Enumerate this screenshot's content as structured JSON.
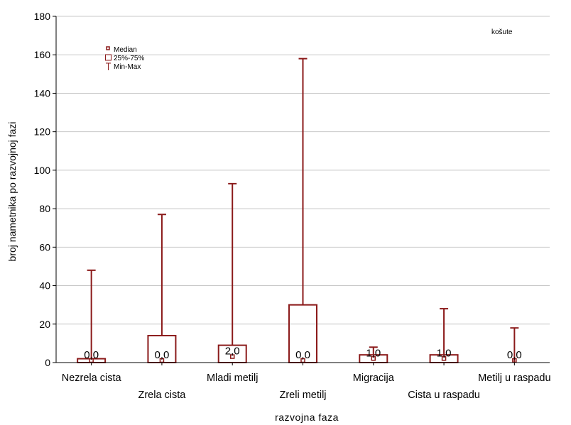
{
  "chart_data": {
    "type": "boxplot",
    "title": "",
    "xlabel": "razvojna faza",
    "ylabel": "broj nametnika po razvojnoj fazi",
    "ylim": [
      0,
      180
    ],
    "yticks": [
      0,
      20,
      40,
      60,
      80,
      100,
      120,
      140,
      160,
      180
    ],
    "grid": true,
    "annotation": "košute",
    "legend": {
      "placement": "top-left",
      "entries": [
        "Median",
        "25%-75%",
        "Min-Max"
      ]
    },
    "colors": {
      "box": "#8b1a1a",
      "grid": "#c8c8c8",
      "axis": "#000000"
    },
    "categories": [
      "Nezrela cista",
      "Zrela cista",
      "Mladi metilj",
      "Zreli metilj",
      "Migracija",
      "Cista u raspadu",
      "Metilj u raspadu"
    ],
    "median_labels": [
      "0,0",
      "0,0",
      "2,0",
      "0,0",
      "1,0",
      "1,0",
      "0,0"
    ],
    "boxes": [
      {
        "min": 0,
        "q1": 0,
        "median": 0,
        "q3": 2,
        "max": 48
      },
      {
        "min": 0,
        "q1": 0,
        "median": 0,
        "q3": 14,
        "max": 77
      },
      {
        "min": 0,
        "q1": 0,
        "median": 2,
        "q3": 9,
        "max": 93
      },
      {
        "min": 0,
        "q1": 0,
        "median": 0,
        "q3": 30,
        "max": 158
      },
      {
        "min": 0,
        "q1": 0,
        "median": 1,
        "q3": 4,
        "max": 8
      },
      {
        "min": 0,
        "q1": 0,
        "median": 1,
        "q3": 4,
        "max": 28
      },
      {
        "min": 0,
        "q1": 0,
        "median": 0,
        "q3": 0,
        "max": 18
      }
    ]
  }
}
